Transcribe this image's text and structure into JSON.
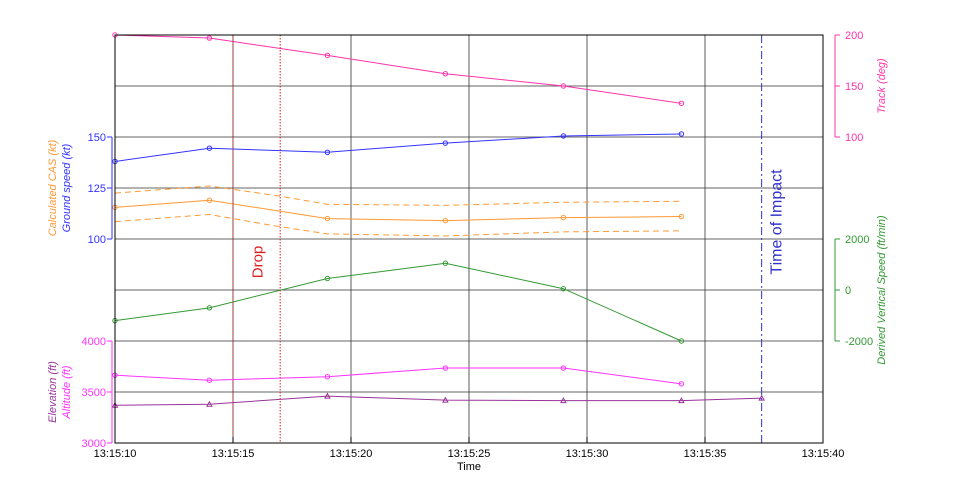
{
  "chart_data": {
    "type": "line",
    "xlabel": "Time",
    "x_ticks": [
      "13:15:10",
      "13:15:15",
      "13:15:20",
      "13:15:25",
      "13:15:30",
      "13:15:35",
      "13:15:40"
    ],
    "x_range_seconds": [
      10,
      40
    ],
    "panels": [
      {
        "name": "track",
        "axis_side": "right",
        "ylabel": "Track (deg)",
        "ylim": [
          100,
          200
        ],
        "ticks": [
          "100",
          "150",
          "200"
        ],
        "color": "#ff33aa",
        "series": [
          {
            "label": "Track (deg)",
            "x": [
              10,
              14,
              19,
              24,
              29,
              34
            ],
            "values": [
              200,
              197,
              180,
              162,
              150,
              133
            ],
            "color": "#ff33aa",
            "marker": "circle",
            "style": "solid"
          }
        ]
      },
      {
        "name": "speed",
        "axis_side": "left",
        "ylabel": "Ground speed (kt)",
        "ylabel2": "Calculated CAS (kt)",
        "ylim": [
          100,
          150
        ],
        "ticks": [
          "100",
          "125",
          "150"
        ],
        "color": "#3333ff",
        "color2": "#ff9933",
        "series": [
          {
            "label": "Ground speed (kt)",
            "x": [
              10,
              14,
              19,
              24,
              29,
              34
            ],
            "values": [
              138,
              144.5,
              142.5,
              147,
              150.5,
              151.5
            ],
            "color": "#3333ff",
            "marker": "circle",
            "style": "solid"
          },
          {
            "label": "Calculated CAS (kt)",
            "x": [
              10,
              14,
              19,
              24,
              29,
              34
            ],
            "values": [
              115.5,
              119,
              110,
              109,
              110.5,
              111
            ],
            "color": "#ff9933",
            "marker": "circle",
            "style": "solid"
          },
          {
            "label": "Calculated CAS upper",
            "x": [
              10,
              14,
              17,
              19,
              24,
              29,
              34
            ],
            "values": [
              122.5,
              126,
              121,
              117,
              116.5,
              118,
              118.5
            ],
            "color": "#ff9933",
            "marker": "none",
            "style": "dashed"
          },
          {
            "label": "Calculated CAS lower",
            "x": [
              10,
              14,
              17,
              19,
              24,
              29,
              34
            ],
            "values": [
              108.5,
              112,
              106,
              102.5,
              101.5,
              103.5,
              104
            ],
            "color": "#ff9933",
            "marker": "none",
            "style": "dashed"
          }
        ]
      },
      {
        "name": "vertical-speed",
        "axis_side": "right",
        "ylabel": "Derived Vertical Speed (ft/min)",
        "ylim": [
          -2000,
          2000
        ],
        "ticks": [
          "-2000",
          "0",
          "2000"
        ],
        "color": "#339933",
        "series": [
          {
            "label": "Derived Vertical Speed (ft/min)",
            "x": [
              10,
              14,
              19,
              24,
              29,
              34
            ],
            "values": [
              -1200,
              -700,
              450,
              1050,
              50,
              -2000
            ],
            "color": "#339933",
            "marker": "circle",
            "style": "solid"
          }
        ]
      },
      {
        "name": "altitude",
        "axis_side": "left",
        "ylabel": "Altitude (ft)",
        "ylabel2": "Elevation (ft)",
        "ylim": [
          3000,
          4000
        ],
        "ticks": [
          "3000",
          "3500",
          "4000"
        ],
        "color": "#ff33ff",
        "color2": "#993399",
        "series": [
          {
            "label": "Altitude (ft)",
            "x": [
              10,
              14,
              19,
              24,
              29,
              34
            ],
            "values": [
              3665,
              3615,
              3650,
              3735,
              3735,
              3580
            ],
            "color": "#ff33ff",
            "marker": "circle",
            "style": "solid"
          },
          {
            "label": "Elevation (ft)",
            "x": [
              10,
              14,
              19,
              24,
              29,
              34,
              37.4
            ],
            "values": [
              3370,
              3380,
              3460,
              3420,
              3415,
              3415,
              3440
            ],
            "color": "#993399",
            "marker": "triangle",
            "style": "solid"
          }
        ]
      }
    ],
    "markers": [
      {
        "label": "Drop",
        "x": [
          15,
          17
        ],
        "color": "#dd2222",
        "style": "dotted"
      },
      {
        "label": "Time of Impact",
        "x": [
          37.4
        ],
        "color": "#3333cc",
        "style": "dash-dot"
      }
    ],
    "grid": true
  }
}
